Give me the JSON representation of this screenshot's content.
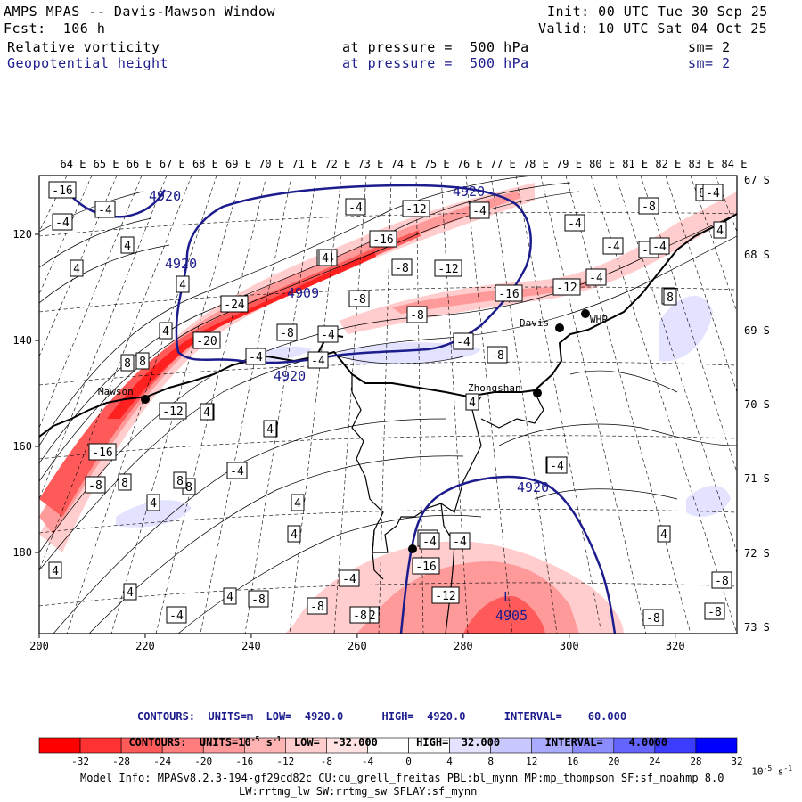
{
  "header": {
    "title": "AMPS MPAS -- Davis-Mawson Window",
    "forecast": "Fcst:  106 h",
    "init": "Init: 00 UTC Tue 30 Sep 25",
    "valid": "Valid: 10 UTC Sat 04 Oct 25",
    "field1": "Relative vorticity",
    "field1_level": "at pressure =  500 hPa",
    "field1_sm": "sm= 2",
    "field2": "Geopotential height",
    "field2_level": "at pressure =  500 hPa",
    "field2_sm": "sm= 2"
  },
  "axes": {
    "top_lon_labels": [
      "64 E",
      "65 E",
      "66 E",
      "67 E",
      "68 E",
      "69 E",
      "70 E",
      "71 E",
      "72 E",
      "73 E",
      "74 E",
      "75 E",
      "76 E",
      "77 E",
      "78 E",
      "79 E",
      "80 E",
      "81 E",
      "82 E",
      "83 E",
      "84 E"
    ],
    "right_lat_labels": [
      "67 S",
      "68 S",
      "69 S",
      "70 S",
      "71 S",
      "72 S",
      "73 S"
    ],
    "x_ticks": [
      "200",
      "220",
      "240",
      "260",
      "280",
      "300",
      "320"
    ],
    "y_ticks": [
      "120",
      "140",
      "160",
      "180"
    ]
  },
  "stations": [
    "Mawson",
    "Davis",
    "WHP",
    "Zhongshan"
  ],
  "height_labels": [
    "4920",
    "4920",
    "4920",
    "4920",
    "4920",
    "4909",
    "4905",
    "L"
  ],
  "vort_labels": [
    "-16",
    "-4",
    "-4",
    "4",
    "4",
    "4",
    "4",
    "8",
    "8",
    "8",
    "8",
    "4",
    "4",
    "8",
    "-24",
    "-20",
    "-4",
    "-8",
    "-4",
    "-4",
    "-16",
    "-8",
    "-12",
    "-8",
    "-12",
    "-16",
    "-8",
    "-4",
    "-4",
    "-4",
    "-4",
    "-12",
    "-4",
    "-8",
    "-4",
    "-4",
    "4",
    "-12",
    "-16",
    "4",
    "4",
    "-8",
    "-4",
    "4",
    "-4",
    "8",
    "4",
    "8",
    "-4",
    "-4",
    "-16",
    "-8",
    "-12",
    "-12",
    "4",
    "-8",
    "-8",
    "-8",
    "-8",
    "4",
    "4",
    "-4",
    "-4",
    "-4",
    "4",
    "4",
    "-8",
    "-4",
    "-4",
    "8",
    "-4",
    "-8",
    "-4",
    "8",
    "4",
    "4"
  ],
  "legend": {
    "contours1": "CONTOURS:  UNITS=m  LOW=  4920.0      HIGH=  4920.0      INTERVAL=    60.000",
    "contours2_a": "CONTOURS:  UNITS=10",
    "contours2_exp": "-5",
    "contours2_b": " s",
    "contours2_exp2": "-1",
    "contours2_c": "  LOW=  -32.000      HIGH=  32.000       INTERVAL=    4.0000",
    "colorbar_ticks": [
      "-32",
      "-28",
      "-24",
      "-20",
      "-16",
      "-12",
      "-8",
      "-4",
      "0",
      "4",
      "8",
      "12",
      "16",
      "20",
      "24",
      "28",
      "32"
    ],
    "unit": "10",
    "unit_exp": "-5",
    "unit_s": " s",
    "unit_exp2": "-1",
    "colors": [
      "#ff0000",
      "#ff3232",
      "#ff5a5a",
      "#ff7d7d",
      "#ff9a9a",
      "#ffb4b4",
      "#ffcdcd",
      "#ffe3e3",
      "#ffffff",
      "#ffffff",
      "#e3e3ff",
      "#c8c8ff",
      "#aaaaff",
      "#8c8cff",
      "#6464ff",
      "#3c3cff",
      "#0000ff"
    ]
  },
  "footer": {
    "model_info": "Model Info: MPASv8.2.3-194-gf29cd82c CU:cu_grell_freitas PBL:bl_mynn MP:mp_thompson SF:sf_noahmp 8.0",
    "model_info2": "LW:rrtmg_lw SW:rrtmg_sw SFLAY:sf_mynn"
  }
}
